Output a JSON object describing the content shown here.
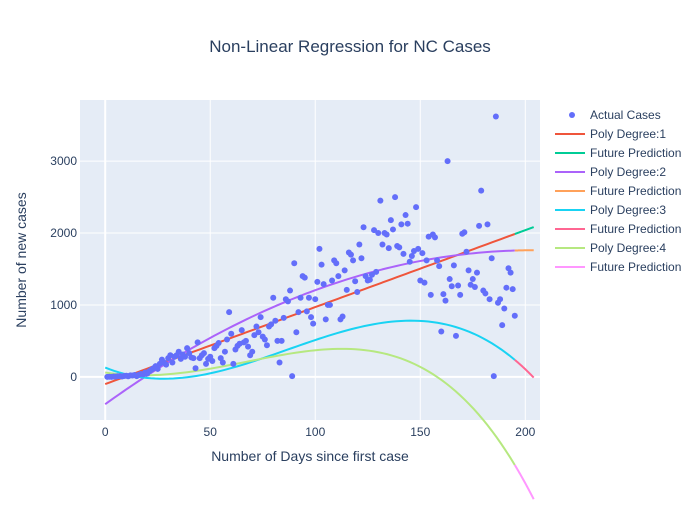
{
  "chart_data": {
    "type": "scatter",
    "title": "Non-Linear Regression for NC Cases",
    "xlabel": "Number of Days since first case",
    "ylabel": "Number of new cases",
    "xlim": [
      -12,
      207
    ],
    "ylim": [
      -600,
      3850
    ],
    "x_ticks": [
      0,
      50,
      100,
      150,
      200
    ],
    "y_ticks": [
      0,
      1000,
      2000,
      3000
    ],
    "grid": true,
    "legend_position": "right",
    "scatter": {
      "name": "Actual Cases",
      "color": "#636efa",
      "points": [
        [
          1,
          0
        ],
        [
          2,
          2
        ],
        [
          3,
          0
        ],
        [
          4,
          5
        ],
        [
          5,
          3
        ],
        [
          6,
          8
        ],
        [
          7,
          10
        ],
        [
          8,
          5
        ],
        [
          9,
          12
        ],
        [
          10,
          15
        ],
        [
          11,
          8
        ],
        [
          12,
          20
        ],
        [
          13,
          18
        ],
        [
          14,
          25
        ],
        [
          15,
          10
        ],
        [
          16,
          30
        ],
        [
          17,
          40
        ],
        [
          18,
          35
        ],
        [
          19,
          60
        ],
        [
          20,
          45
        ],
        [
          21,
          80
        ],
        [
          22,
          100
        ],
        [
          23,
          120
        ],
        [
          24,
          150
        ],
        [
          25,
          110
        ],
        [
          26,
          180
        ],
        [
          27,
          240
        ],
        [
          28,
          200
        ],
        [
          29,
          170
        ],
        [
          30,
          260
        ],
        [
          31,
          300
        ],
        [
          32,
          200
        ],
        [
          33,
          280
        ],
        [
          34,
          300
        ],
        [
          35,
          350
        ],
        [
          36,
          250
        ],
        [
          37,
          310
        ],
        [
          38,
          280
        ],
        [
          39,
          400
        ],
        [
          40,
          330
        ],
        [
          41,
          270
        ],
        [
          42,
          260
        ],
        [
          43,
          120
        ],
        [
          44,
          480
        ],
        [
          45,
          260
        ],
        [
          46,
          300
        ],
        [
          47,
          330
        ],
        [
          48,
          180
        ],
        [
          49,
          250
        ],
        [
          50,
          280
        ],
        [
          51,
          220
        ],
        [
          52,
          400
        ],
        [
          53,
          430
        ],
        [
          54,
          470
        ],
        [
          55,
          260
        ],
        [
          56,
          200
        ],
        [
          57,
          350
        ],
        [
          58,
          520
        ],
        [
          59,
          900
        ],
        [
          60,
          600
        ],
        [
          61,
          180
        ],
        [
          62,
          380
        ],
        [
          63,
          430
        ],
        [
          64,
          460
        ],
        [
          65,
          650
        ],
        [
          66,
          480
        ],
        [
          67,
          500
        ],
        [
          68,
          420
        ],
        [
          69,
          300
        ],
        [
          70,
          350
        ],
        [
          71,
          580
        ],
        [
          72,
          700
        ],
        [
          73,
          620
        ],
        [
          74,
          830
        ],
        [
          75,
          560
        ],
        [
          76,
          520
        ],
        [
          77,
          440
        ],
        [
          78,
          700
        ],
        [
          79,
          730
        ],
        [
          80,
          1100
        ],
        [
          81,
          780
        ],
        [
          82,
          500
        ],
        [
          83,
          200
        ],
        [
          84,
          500
        ],
        [
          85,
          820
        ],
        [
          86,
          1080
        ],
        [
          87,
          1050
        ],
        [
          88,
          1200
        ],
        [
          89,
          10
        ],
        [
          90,
          1580
        ],
        [
          91,
          620
        ],
        [
          92,
          900
        ],
        [
          93,
          1100
        ],
        [
          94,
          1400
        ],
        [
          95,
          1380
        ],
        [
          96,
          910
        ],
        [
          97,
          1100
        ],
        [
          98,
          830
        ],
        [
          99,
          740
        ],
        [
          100,
          1080
        ],
        [
          101,
          1320
        ],
        [
          102,
          1780
        ],
        [
          103,
          1560
        ],
        [
          104,
          1290
        ],
        [
          105,
          800
        ],
        [
          106,
          1000
        ],
        [
          107,
          1000
        ],
        [
          108,
          1340
        ],
        [
          109,
          1620
        ],
        [
          110,
          1580
        ],
        [
          111,
          1400
        ],
        [
          112,
          800
        ],
        [
          113,
          840
        ],
        [
          114,
          1480
        ],
        [
          115,
          1210
        ],
        [
          116,
          1730
        ],
        [
          117,
          1700
        ],
        [
          118,
          1620
        ],
        [
          119,
          1330
        ],
        [
          120,
          1180
        ],
        [
          121,
          1840
        ],
        [
          122,
          1650
        ],
        [
          123,
          2080
        ],
        [
          124,
          1400
        ],
        [
          125,
          1340
        ],
        [
          126,
          1350
        ],
        [
          127,
          1420
        ],
        [
          128,
          2040
        ],
        [
          129,
          1460
        ],
        [
          130,
          2000
        ],
        [
          131,
          2450
        ],
        [
          132,
          1840
        ],
        [
          133,
          2000
        ],
        [
          134,
          1980
        ],
        [
          135,
          1790
        ],
        [
          136,
          2180
        ],
        [
          137,
          2050
        ],
        [
          138,
          2500
        ],
        [
          139,
          1820
        ],
        [
          140,
          1800
        ],
        [
          141,
          2120
        ],
        [
          142,
          1710
        ],
        [
          143,
          2250
        ],
        [
          144,
          2130
        ],
        [
          145,
          1600
        ],
        [
          146,
          1680
        ],
        [
          147,
          1750
        ],
        [
          148,
          2360
        ],
        [
          149,
          1780
        ],
        [
          150,
          1340
        ],
        [
          151,
          1720
        ],
        [
          152,
          1310
        ],
        [
          153,
          1620
        ],
        [
          154,
          1950
        ],
        [
          155,
          1140
        ],
        [
          156,
          1980
        ],
        [
          157,
          1940
        ],
        [
          158,
          1620
        ],
        [
          159,
          1540
        ],
        [
          160,
          630
        ],
        [
          161,
          1150
        ],
        [
          162,
          1060
        ],
        [
          163,
          3000
        ],
        [
          164,
          1360
        ],
        [
          165,
          1260
        ],
        [
          166,
          1550
        ],
        [
          167,
          570
        ],
        [
          168,
          1270
        ],
        [
          169,
          1140
        ],
        [
          170,
          1990
        ],
        [
          171,
          2010
        ],
        [
          172,
          1740
        ],
        [
          173,
          1480
        ],
        [
          174,
          1280
        ],
        [
          175,
          1360
        ],
        [
          176,
          1250
        ],
        [
          177,
          1450
        ],
        [
          178,
          2100
        ],
        [
          179,
          2590
        ],
        [
          180,
          1200
        ],
        [
          181,
          1160
        ],
        [
          182,
          2120
        ],
        [
          183,
          1080
        ],
        [
          184,
          1650
        ],
        [
          185,
          10
        ],
        [
          186,
          3620
        ],
        [
          187,
          1030
        ],
        [
          188,
          1080
        ],
        [
          189,
          720
        ],
        [
          190,
          950
        ],
        [
          191,
          1240
        ],
        [
          192,
          1510
        ],
        [
          193,
          1450
        ],
        [
          194,
          1220
        ],
        [
          195,
          850
        ]
      ]
    },
    "fits": [
      {
        "name": "Poly Degree:1",
        "color": "#EF553B",
        "x_range": [
          0,
          195
        ],
        "future_range": [
          195,
          204
        ],
        "coefficients": [
          -100,
          10.7
        ],
        "future": {
          "name": "Future Prediction",
          "color": "#00cc96"
        }
      },
      {
        "name": "Poly Degree:2",
        "color": "#ab63fa",
        "x_range": [
          0,
          195
        ],
        "future_range": [
          195,
          204
        ],
        "coefficients": [
          -380,
          21.0,
          -0.0515
        ],
        "future": {
          "name": "Future Prediction",
          "color": "#FFA15A"
        }
      },
      {
        "name": "Poly Degree:3",
        "color": "#19d3f3",
        "x_range": [
          0,
          195
        ],
        "future_range": [
          195,
          204
        ],
        "coefficients": [
          130,
          -12.0,
          0.257,
          -0.000988
        ],
        "future": {
          "name": "Future Prediction",
          "color": "#FF6692"
        }
      },
      {
        "name": "Poly Degree:4",
        "color": "#B6E880",
        "x_range": [
          0,
          195
        ],
        "future_range": [
          195,
          204
        ],
        "coefficients": [
          60,
          -4.5,
          0.14,
          -0.0005,
          -1.4e-06
        ],
        "future": {
          "name": "Future Prediction",
          "color": "#FF97FF"
        }
      }
    ]
  }
}
